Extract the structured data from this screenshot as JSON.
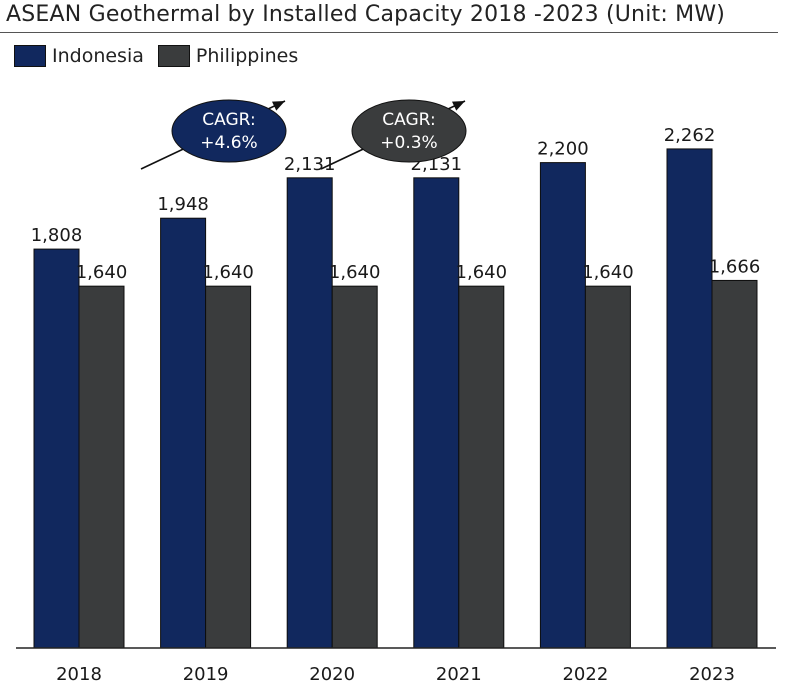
{
  "colors": {
    "indonesia": "#11285e",
    "philippines": "#3a3c3d",
    "axis": "#222222"
  },
  "chart_data": {
    "type": "bar",
    "title": "ASEAN Geothermal by Installed Capacity 2018 -2023 (Unit: MW)",
    "categories": [
      "2018",
      "2019",
      "2020",
      "2021",
      "2022",
      "2023"
    ],
    "series": [
      {
        "name": "Indonesia",
        "values": [
          1808,
          1948,
          2131,
          2131,
          2200,
          2262
        ],
        "labels": [
          "1,808",
          "1,948",
          "2,131",
          "2,131",
          "2,200",
          "2,262"
        ]
      },
      {
        "name": "Philippines",
        "values": [
          1640,
          1640,
          1640,
          1640,
          1640,
          1666
        ],
        "labels": [
          "1,640",
          "1,640",
          "1,640",
          "1,640",
          "1,640",
          "1,666"
        ]
      }
    ],
    "ylim": [
      0,
      2520
    ],
    "grid": false,
    "legend": "top-left",
    "annotations": [
      {
        "series": "Indonesia",
        "line1": "CAGR:",
        "line2": "+4.6%"
      },
      {
        "series": "Philippines",
        "line1": "CAGR:",
        "line2": "+0.3%"
      }
    ]
  }
}
